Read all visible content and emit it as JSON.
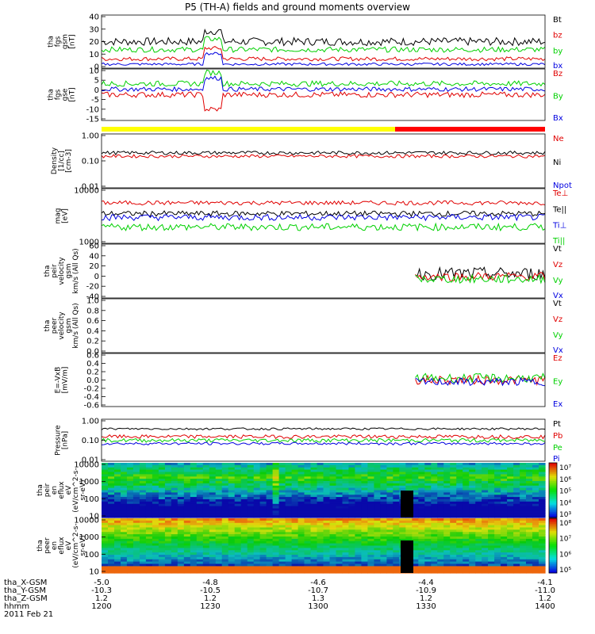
{
  "title": "P5 (TH-A) fields and ground moments overview",
  "colors": {
    "black": "#000000",
    "red": "#e00000",
    "green": "#00d000",
    "blue": "#0000e0",
    "yellow": "#ffff00",
    "flag_red": "#ff0000"
  },
  "chart_data": {
    "type": "line",
    "panels": [
      {
        "ylabel": [
          "tha",
          "fgs",
          "gsm",
          "[nT]"
        ],
        "yticks": [
          "40",
          "30",
          "20",
          "10",
          "0"
        ],
        "ylim": [
          0,
          40
        ],
        "legend": [
          {
            "label": "Bt",
            "color": "#000000"
          },
          {
            "label": "bz",
            "color": "#e00000"
          },
          {
            "label": "by",
            "color": "#00d000"
          },
          {
            "label": "bx",
            "color": "#0000e0"
          }
        ]
      },
      {
        "ylabel": [
          "tha",
          "fgs",
          "gse",
          "[nT]"
        ],
        "yticks": [
          "10",
          "5",
          "0",
          "-5",
          "-10",
          "-15"
        ],
        "ylim": [
          -18,
          10
        ],
        "legend": [
          {
            "label": "Bz",
            "color": "#e00000"
          },
          {
            "label": "By",
            "color": "#00d000"
          },
          {
            "label": "Bx",
            "color": "#0000e0"
          }
        ]
      },
      {
        "ylabel": [
          "Density",
          "[1/cc]",
          "[cm-3]"
        ],
        "yticks": [
          "1.00",
          "0.10",
          "0.01"
        ],
        "ylim": [
          0.01,
          1.0
        ],
        "scale": "log",
        "legend": [
          {
            "label": "Ne",
            "color": "#e00000"
          },
          {
            "label": "Ni",
            "color": "#000000"
          },
          {
            "label": "Npot",
            "color": "#0000e0"
          }
        ]
      },
      {
        "ylabel": [
          "mag",
          "[eV]"
        ],
        "yticks": [
          "10000",
          "1000"
        ],
        "ylim": [
          1000,
          10000
        ],
        "scale": "log",
        "legend": [
          {
            "label": "Te⊥",
            "color": "#e00000"
          },
          {
            "label": "Te||",
            "color": "#000000"
          },
          {
            "label": "Ti⊥",
            "color": "#0000e0"
          },
          {
            "label": "Ti||",
            "color": "#00d000"
          }
        ]
      },
      {
        "ylabel": [
          "tha",
          "peir",
          "velocity",
          "gsm",
          "km/s (All Qs)"
        ],
        "yticks": [
          "60",
          "40",
          "20",
          "0",
          "-20",
          "-40"
        ],
        "ylim": [
          -40,
          60
        ],
        "legend": [
          {
            "label": "Vt",
            "color": "#000000"
          },
          {
            "label": "Vz",
            "color": "#e00000"
          },
          {
            "label": "Vy",
            "color": "#00d000"
          },
          {
            "label": "Vx",
            "color": "#0000e0"
          }
        ]
      },
      {
        "ylabel": [
          "tha",
          "peer",
          "velocity",
          "gsm",
          "km/s (All Qs)"
        ],
        "yticks": [
          "1.0",
          "0.8",
          "0.6",
          "0.4",
          "0.2",
          "0.0"
        ],
        "ylim": [
          0,
          1
        ],
        "legend": [
          {
            "label": "Vt",
            "color": "#000000"
          },
          {
            "label": "Vz",
            "color": "#e00000"
          },
          {
            "label": "Vy",
            "color": "#00d000"
          },
          {
            "label": "Vx",
            "color": "#0000e0"
          }
        ]
      },
      {
        "ylabel": [
          "E=-VxB",
          "[mV/m]"
        ],
        "yticks": [
          "0.6",
          "0.4",
          "0.2",
          "0.0",
          "-0.2",
          "-0.4",
          "-0.6"
        ],
        "ylim": [
          -0.7,
          0.7
        ],
        "legend": [
          {
            "label": "Ez",
            "color": "#e00000"
          },
          {
            "label": "Ey",
            "color": "#00d000"
          },
          {
            "label": "Ex",
            "color": "#0000e0"
          }
        ]
      },
      {
        "ylabel": [
          "Pressure",
          "[nPa]"
        ],
        "yticks": [
          "1.00",
          "0.10",
          "0.01"
        ],
        "ylim": [
          0.01,
          1.0
        ],
        "scale": "log",
        "legend": [
          {
            "label": "Pt",
            "color": "#000000"
          },
          {
            "label": "Pb",
            "color": "#e00000"
          },
          {
            "label": "Pe",
            "color": "#00d000"
          },
          {
            "label": "Pi",
            "color": "#0000e0"
          }
        ]
      },
      {
        "ylabel": [
          "tha",
          "peir",
          "en",
          "eflux",
          "eV",
          "(eV/cm^2-s-",
          "sr-eV)"
        ],
        "yticks": [
          "10000",
          "1000",
          "100",
          "10"
        ],
        "type": "spectrogram",
        "colorbar": [
          "10⁷",
          "10⁶",
          "10⁵",
          "10⁴",
          "10³"
        ]
      },
      {
        "ylabel": [
          "tha",
          "peer",
          "en",
          "eflux",
          "eV",
          "(eV/cm^2-s-",
          "sr-eV)"
        ],
        "yticks": [
          "10000",
          "1000",
          "100",
          "10"
        ],
        "type": "spectrogram",
        "colorbar": [
          "10⁸",
          "10⁷",
          "10⁶",
          "10⁵"
        ]
      }
    ],
    "x_axis": {
      "rows": [
        {
          "label": "tha_X-GSM",
          "values": [
            "-5.0",
            "-4.8",
            "-4.6",
            "-4.4",
            "-4.1"
          ]
        },
        {
          "label": "tha_Y-GSM",
          "values": [
            "-10.3",
            "-10.5",
            "-10.7",
            "-10.9",
            "-11.0"
          ]
        },
        {
          "label": "tha_Z-GSM",
          "values": [
            "1.2",
            "1.2",
            "1.3",
            "1.2",
            "1.2"
          ]
        },
        {
          "label": "hhmm",
          "values": [
            "1200",
            "1230",
            "1300",
            "1330",
            "1400"
          ]
        }
      ],
      "date": "2011 Feb 21"
    }
  }
}
